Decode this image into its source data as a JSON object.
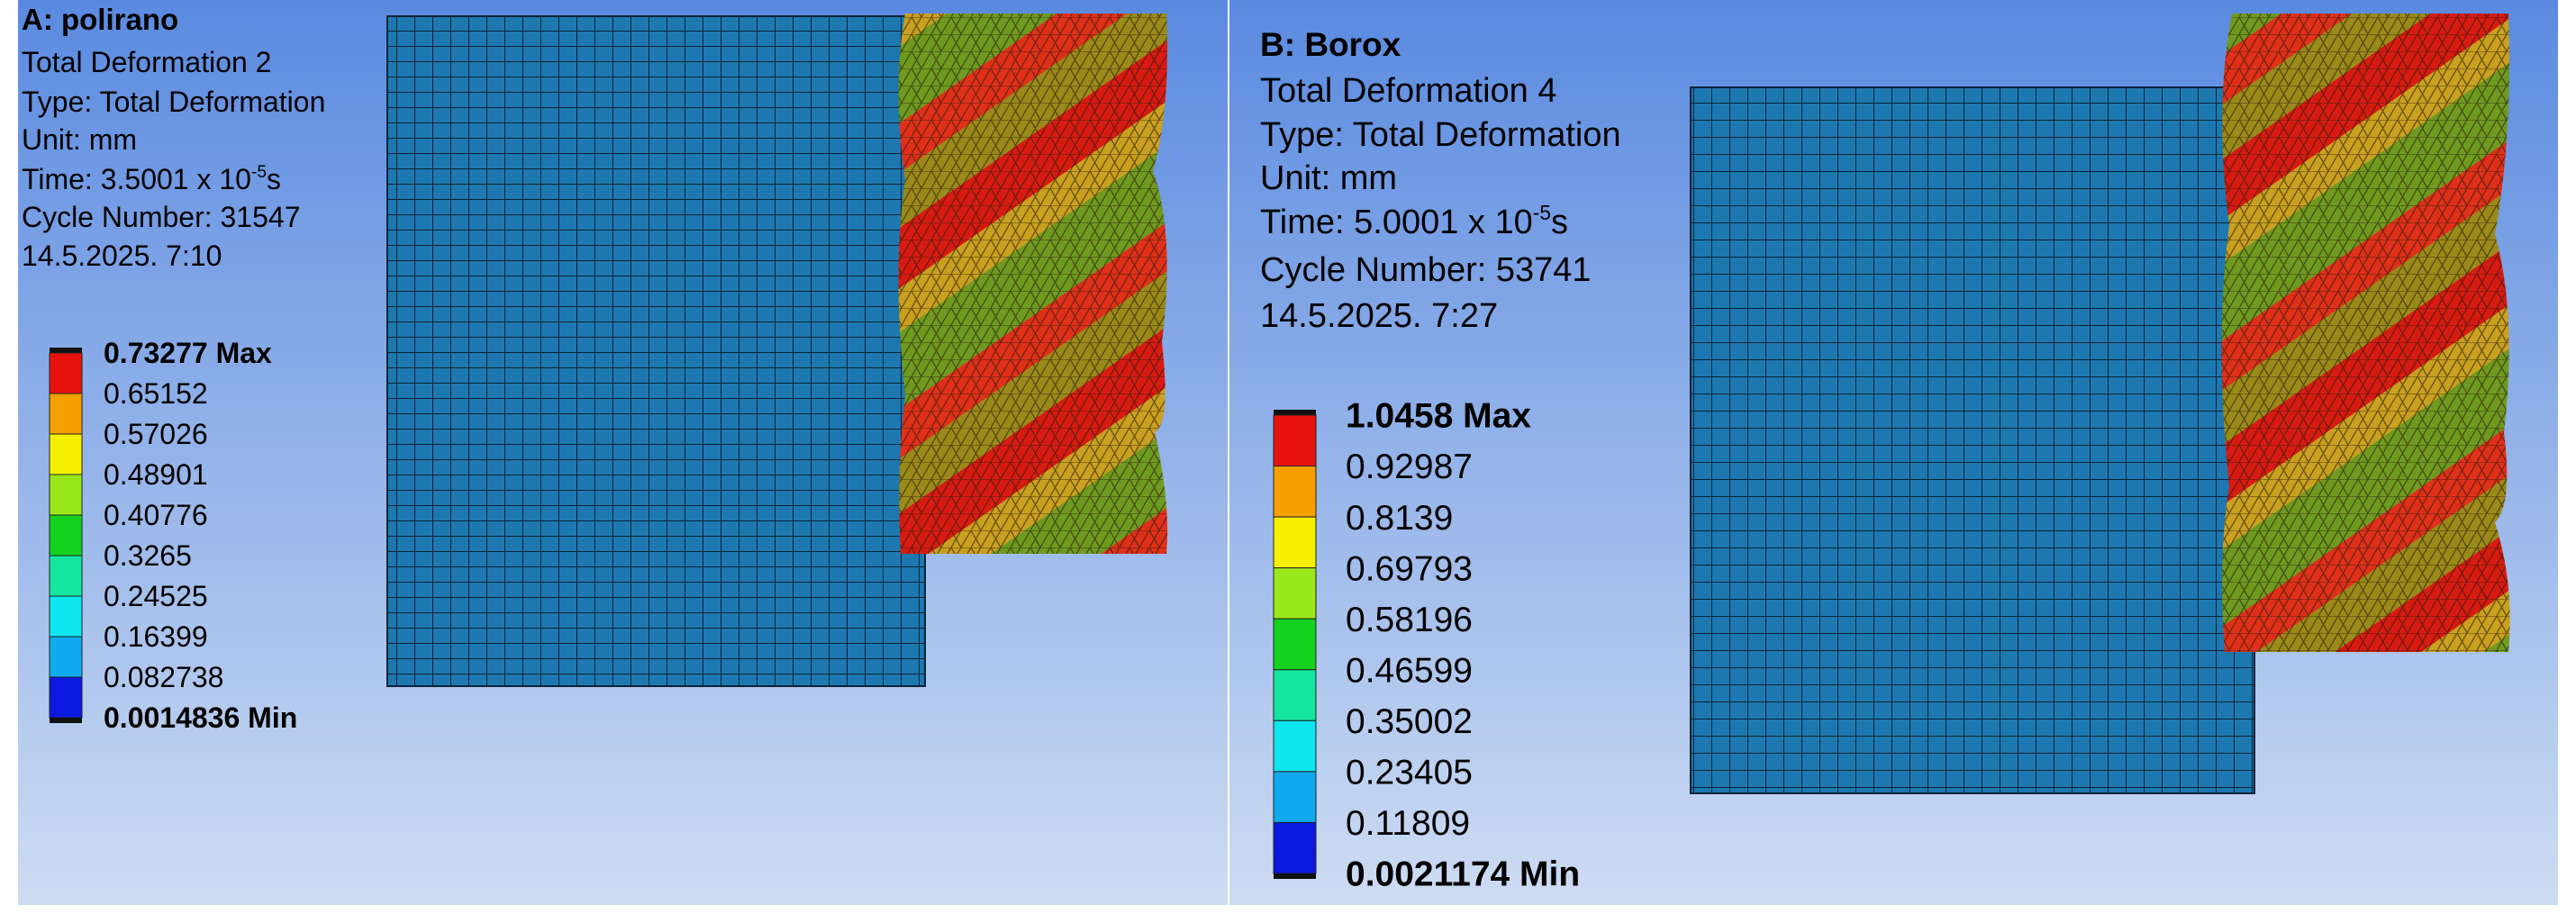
{
  "panels": [
    {
      "title": "A: polirano",
      "result": "Total Deformation 2",
      "type": "Type: Total Deformation",
      "unit": "Unit: mm",
      "time": {
        "prefix": "Time: 3.5001 x 10",
        "exponent": "-5",
        "suffix": "s"
      },
      "cycle": "Cycle Number: 31547",
      "date": "14.5.2025. 7:10",
      "legend": [
        "0.73277 Max",
        "0.65152",
        "0.57026",
        "0.48901",
        "0.40776",
        "0.3265",
        "0.24525",
        "0.16399",
        "0.082738",
        "0.0014836 Min"
      ]
    },
    {
      "title": "B: Borox",
      "result": "Total Deformation 4",
      "type": "Type: Total Deformation",
      "unit": "Unit: mm",
      "time": {
        "prefix": "Time: 5.0001 x 10",
        "exponent": "-5",
        "suffix": "s"
      },
      "cycle": "Cycle Number: 53741",
      "date": "14.5.2025. 7:27",
      "legend": [
        "1.0458 Max",
        "0.92987",
        "0.8139",
        "0.69793",
        "0.58196",
        "0.46599",
        "0.35002",
        "0.23405",
        "0.11809",
        "0.0021174 Min"
      ]
    }
  ]
}
